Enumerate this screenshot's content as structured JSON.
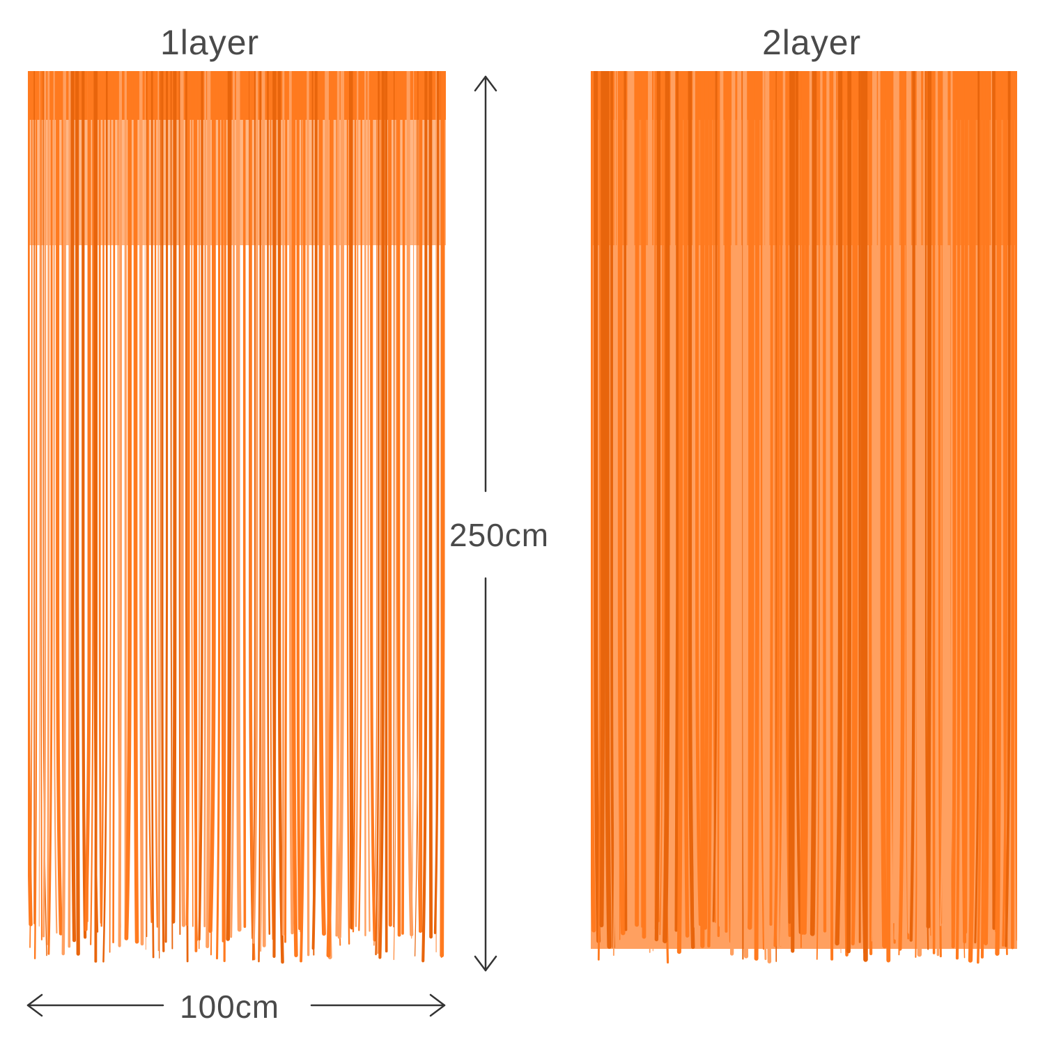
{
  "labels": {
    "layer1": "1layer",
    "layer2": "2layer",
    "height": "250cm",
    "width": "100cm"
  },
  "colors": {
    "curtain": "#ff7a1f",
    "curtain_light": "#ffa060",
    "curtain_dark": "#e8650c",
    "text": "#4a4a4a",
    "arrow": "#333333"
  }
}
